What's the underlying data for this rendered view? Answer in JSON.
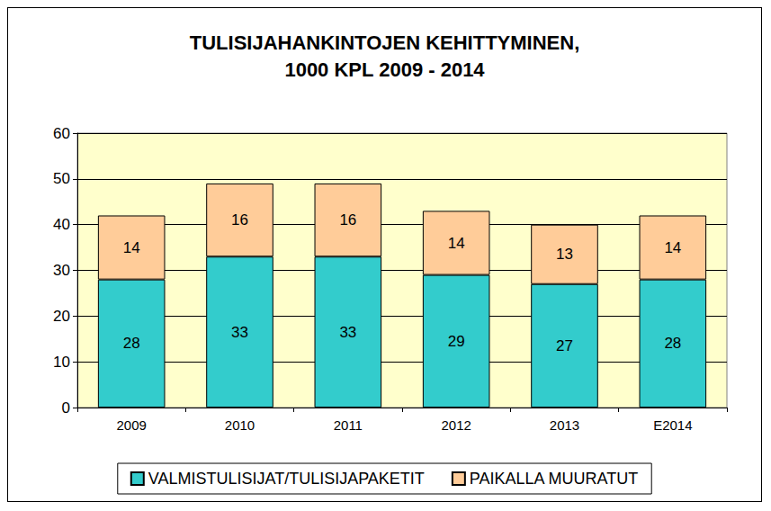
{
  "chart_data": {
    "type": "bar",
    "title": "TULISIJAHANKINTOJEN KEHITTYMINEN,\n1000 KPL 2009 - 2014",
    "categories": [
      "2009",
      "2010",
      "2011",
      "2012",
      "2013",
      "E2014"
    ],
    "series": [
      {
        "name": "VALMISTULISIJAT/TULISIJAPAKETIT",
        "color": "#33CCCC",
        "values": [
          28,
          33,
          33,
          29,
          27,
          28
        ]
      },
      {
        "name": "PAIKALLA MUURATUT",
        "color": "#FFCC99",
        "values": [
          14,
          16,
          16,
          14,
          13,
          14
        ]
      }
    ],
    "ylim": [
      0,
      60
    ],
    "yticks": [
      0,
      10,
      20,
      30,
      40,
      50,
      60
    ],
    "stacked": true,
    "grid": true,
    "legend": "bottom",
    "data_labels": true
  }
}
